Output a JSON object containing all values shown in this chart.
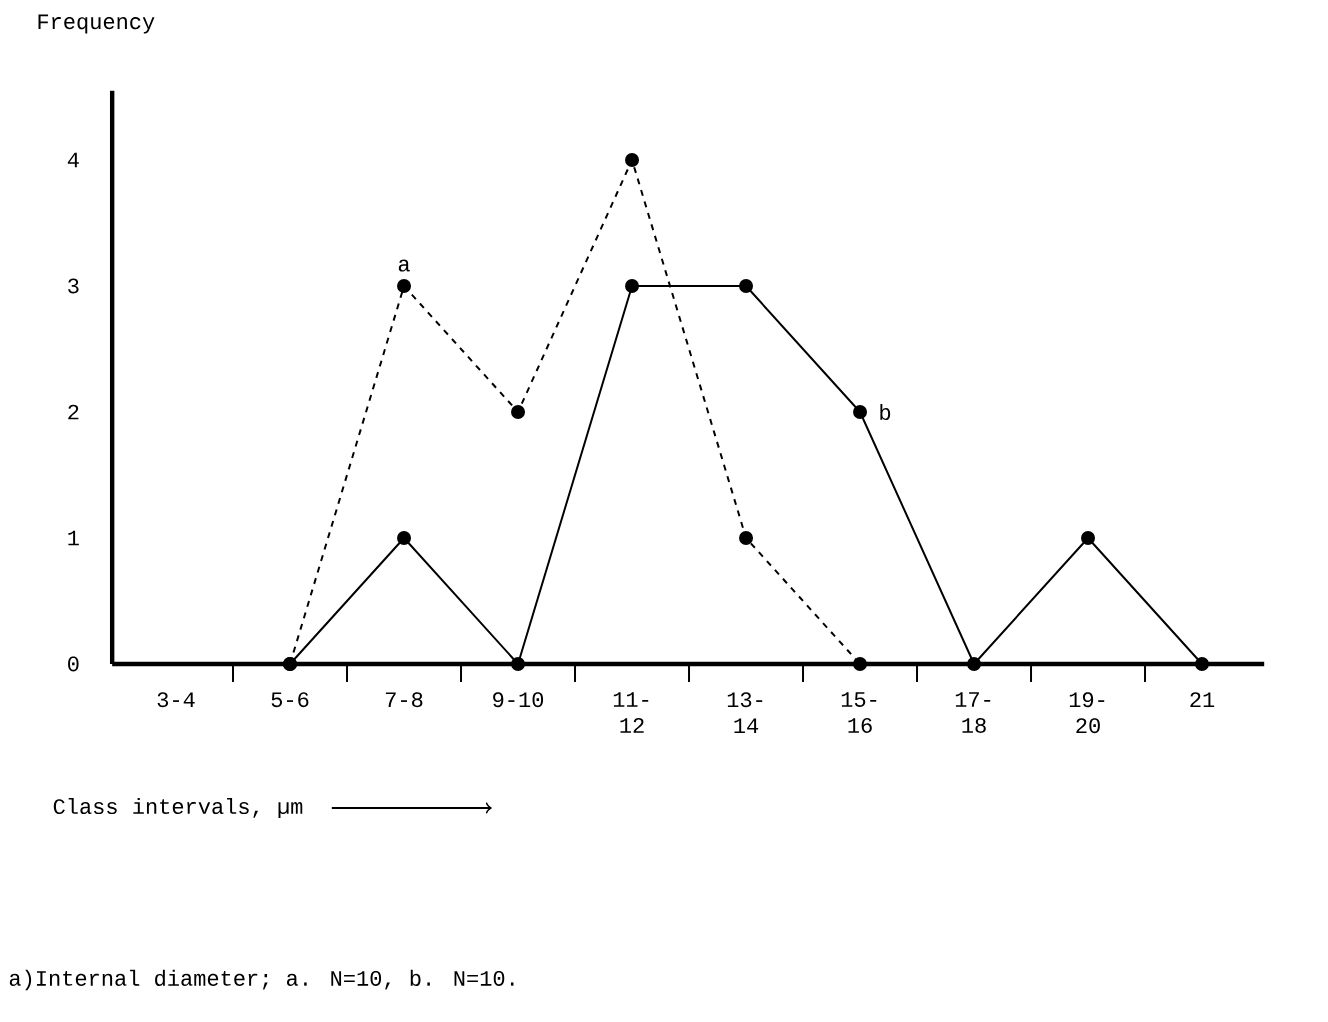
{
  "chart_data": {
    "type": "line",
    "ylabel": "Frequency",
    "xlabel": "Class intervals, µm",
    "categories": [
      "3-4",
      "5-6",
      "7-8",
      "9-10",
      "11-12",
      "13-14",
      "15-16",
      "17-18",
      "19-20",
      "21"
    ],
    "series": [
      {
        "name": "a",
        "color": "#000000",
        "line_style": "dashed",
        "values": [
          null,
          0,
          3,
          2,
          4,
          1,
          0,
          null,
          null,
          null
        ]
      },
      {
        "name": "b",
        "color": "#000000",
        "line_style": "solid",
        "values": [
          null,
          0,
          1,
          0,
          3,
          3,
          2,
          0,
          1,
          0
        ]
      }
    ],
    "ylim": [
      0,
      4.55
    ],
    "yticks": [
      0,
      1,
      2,
      3,
      4
    ],
    "marker": "circle",
    "grid": false,
    "annotations": [
      "a)Internal diameter; a. N=10, b. N=10."
    ]
  }
}
